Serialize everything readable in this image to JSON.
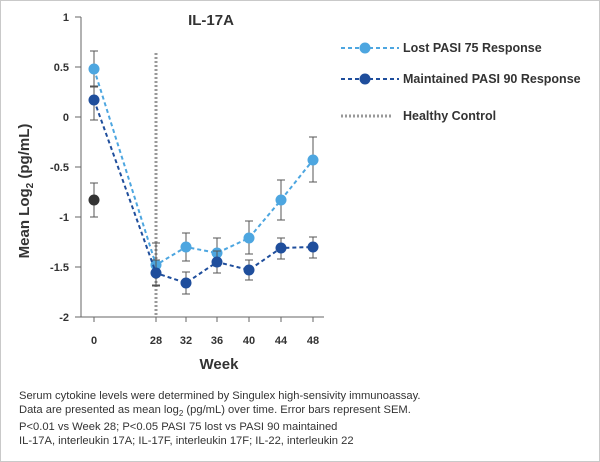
{
  "chart_data": {
    "type": "line",
    "title": "IL-17A",
    "xlabel": "Week",
    "ylabel_main": "Mean Log",
    "ylabel_sub": "2",
    "ylabel_unit": " (pg/mL)",
    "categories": [
      "0",
      "28",
      "32",
      "36",
      "40",
      "44",
      "48"
    ],
    "ylim": [
      -2,
      1
    ],
    "yticks": [
      "1",
      "0.5",
      "0",
      "-0.5",
      "-1",
      "-1.5",
      "-2"
    ],
    "ytick_values": [
      1,
      0.5,
      0,
      -0.5,
      -1,
      -1.5,
      -2
    ],
    "series": [
      {
        "name": "Lost PASI 75 Response",
        "color": "#4da6e0",
        "values": [
          0.48,
          -1.48,
          -1.3,
          -1.36,
          -1.21,
          -0.83,
          -0.43
        ],
        "err_upper": [
          0.66,
          -1.26,
          -1.16,
          -1.21,
          -1.04,
          -0.63,
          -0.2
        ],
        "err_lower": [
          0.3,
          -1.68,
          -1.44,
          -1.49,
          -1.37,
          -1.03,
          -0.65
        ]
      },
      {
        "name": "Maintained PASI 90 Response",
        "color": "#1f4e9c",
        "values": [
          0.17,
          -1.56,
          -1.66,
          -1.45,
          -1.53,
          -1.31,
          -1.3
        ],
        "err_upper": [
          0.31,
          -1.43,
          -1.55,
          -1.34,
          -1.43,
          -1.21,
          -1.2
        ],
        "err_lower": [
          -0.03,
          -1.69,
          -1.77,
          -1.56,
          -1.63,
          -1.42,
          -1.41
        ]
      }
    ],
    "healthy_control": {
      "name": "Healthy Control",
      "color": "#999999",
      "week": "28",
      "point_color": "#333333",
      "point_week": "0",
      "point_value": -0.83,
      "point_err_upper": -0.66,
      "point_err_lower": -1.0
    },
    "legend_position": "top-right",
    "grid": false
  },
  "footnote": {
    "line1": "Serum cytokine levels were determined by Singulex high-sensivity immunoassay.",
    "line2_pre": "Data are presented as mean log",
    "line2_sub": "2",
    "line2_post": " (pg/mL) over time. Error bars represent SEM.",
    "line3": "P<0.01 vs Week 28; P<0.05 PASI 75 lost vs PASI 90 maintained",
    "line4": "IL-17A, interleukin 17A; IL-17F, interleukin 17F; IL-22, interleukin 22"
  }
}
